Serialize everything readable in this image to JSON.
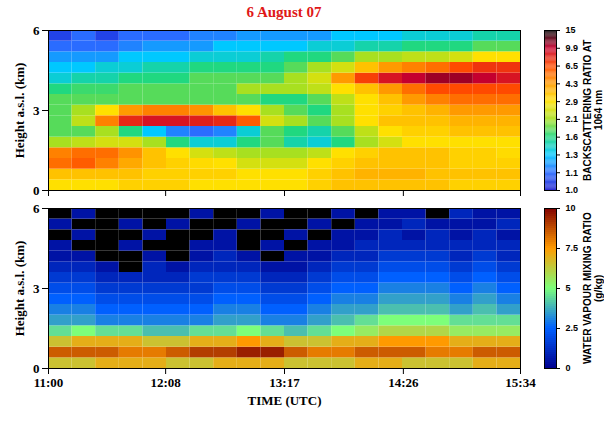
{
  "chart_data": [
    {
      "type": "heatmap",
      "title": "6 August 07",
      "ylabel": "Height a.s.l. (km)",
      "xlim": [
        660,
        934
      ],
      "xticks": [
        {
          "value": 660,
          "label": "11:00"
        },
        {
          "value": 728,
          "label": "12:08"
        },
        {
          "value": 797,
          "label": "13:17"
        },
        {
          "value": 866,
          "label": "14:26"
        },
        {
          "value": 934,
          "label": "15:34"
        }
      ],
      "ylim": [
        0,
        6
      ],
      "yticks": [
        0,
        3,
        6
      ],
      "tick_labels": "y",
      "x_bins": [
        660,
        673.7,
        687.4,
        701.1,
        714.8,
        728.5,
        742.2,
        755.9,
        769.6,
        783.3,
        797,
        810.7,
        824.4,
        838.1,
        851.8,
        865.5,
        879.2,
        892.9,
        906.6,
        920.3,
        934
      ],
      "y_bins": [
        0,
        0.4,
        0.8,
        1.2,
        1.6,
        2.0,
        2.4,
        2.8,
        3.2,
        3.6,
        4.0,
        4.4,
        4.8,
        5.2,
        5.6,
        6.0
      ],
      "cells": [
        [
          2.9,
          2.9,
          2.9,
          3.2,
          3.2,
          3.2,
          2.9,
          2.9,
          2.9,
          2.9,
          2.9,
          3.2,
          3.5,
          3.5,
          3.5,
          3.5,
          3.5,
          3.2,
          3.2,
          3.2
        ],
        [
          3.5,
          3.5,
          3.5,
          3.5,
          3.2,
          3.2,
          3.2,
          3.2,
          2.9,
          2.9,
          2.9,
          3.2,
          3.5,
          3.8,
          3.8,
          3.8,
          3.5,
          3.5,
          3.5,
          3.5
        ],
        [
          5.5,
          6.0,
          5.0,
          4.0,
          3.5,
          3.2,
          3.0,
          2.9,
          2.5,
          2.5,
          2.5,
          2.9,
          3.2,
          3.5,
          3.5,
          3.5,
          3.5,
          3.2,
          3.2,
          3.2
        ],
        [
          5.0,
          5.5,
          5.5,
          4.5,
          3.5,
          2.9,
          2.5,
          2.3,
          2.1,
          2.1,
          2.1,
          2.3,
          2.9,
          3.2,
          3.5,
          3.5,
          3.5,
          3.2,
          3.2,
          3.0
        ],
        [
          2.1,
          2.3,
          2.5,
          2.5,
          2.1,
          1.6,
          1.4,
          1.4,
          1.6,
          1.8,
          1.5,
          1.4,
          1.6,
          2.1,
          2.5,
          2.9,
          2.9,
          2.9,
          2.9,
          2.9
        ],
        [
          1.8,
          1.8,
          2.1,
          1.6,
          1.3,
          1.15,
          1.1,
          1.15,
          1.4,
          1.8,
          1.6,
          1.5,
          1.8,
          2.3,
          2.9,
          3.2,
          3.2,
          3.5,
          3.5,
          3.5
        ],
        [
          1.8,
          2.3,
          5.0,
          8.0,
          9.0,
          9.0,
          8.5,
          8.0,
          6.0,
          2.5,
          2.1,
          1.8,
          2.1,
          2.9,
          3.5,
          3.5,
          3.5,
          3.8,
          3.8,
          3.8
        ],
        [
          1.8,
          2.1,
          2.9,
          4.3,
          5.0,
          5.0,
          4.5,
          3.5,
          2.9,
          2.1,
          1.8,
          1.6,
          2.1,
          2.9,
          3.2,
          3.5,
          3.8,
          4.3,
          4.3,
          4.3
        ],
        [
          1.8,
          1.8,
          1.8,
          1.8,
          1.8,
          1.8,
          1.8,
          1.8,
          1.8,
          1.6,
          1.6,
          1.8,
          2.3,
          2.9,
          3.5,
          4.3,
          5.0,
          5.5,
          5.5,
          5.5
        ],
        [
          1.6,
          1.7,
          1.7,
          1.8,
          1.8,
          1.8,
          1.8,
          1.8,
          2.1,
          2.1,
          2.1,
          2.3,
          2.9,
          3.5,
          4.3,
          5.5,
          6.5,
          6.5,
          6.5,
          6.5
        ],
        [
          1.4,
          1.5,
          1.5,
          1.6,
          1.6,
          1.6,
          1.8,
          1.8,
          1.8,
          1.8,
          2.1,
          2.5,
          4.3,
          7.0,
          9.0,
          10,
          11,
          11,
          10,
          9.0
        ],
        [
          1.3,
          1.3,
          1.4,
          1.4,
          1.5,
          1.5,
          1.6,
          1.6,
          1.6,
          1.6,
          1.8,
          2.1,
          2.5,
          3.5,
          4.3,
          5.0,
          5.5,
          6.5,
          7.5,
          7.5
        ],
        [
          1.2,
          1.2,
          1.2,
          1.3,
          1.3,
          1.3,
          1.4,
          1.4,
          1.4,
          1.5,
          1.6,
          1.6,
          1.8,
          2.1,
          2.1,
          2.3,
          2.3,
          2.5,
          2.9,
          2.9
        ],
        [
          1.1,
          1.1,
          1.1,
          1.15,
          1.2,
          1.2,
          1.2,
          1.3,
          1.3,
          1.3,
          1.3,
          1.4,
          1.4,
          1.5,
          1.5,
          1.6,
          1.6,
          1.6,
          1.8,
          1.8
        ],
        [
          1.05,
          1.1,
          1.05,
          1.1,
          1.1,
          1.1,
          1.15,
          1.15,
          1.2,
          1.2,
          1.2,
          1.2,
          1.3,
          1.3,
          1.3,
          1.4,
          1.4,
          1.4,
          1.5,
          1.5
        ]
      ],
      "colorbar": {
        "label": "BACKSCATTERING RATIO AT 1064 nm",
        "range": [
          1,
          15
        ],
        "ticks": [
          {
            "value": 1,
            "label": "1.0"
          },
          1.1,
          1.3,
          1.6,
          2.1,
          2.9,
          4.3,
          6.5,
          9.9,
          15
        ],
        "colors": [
          "#1a1ad0",
          "#2a6cff",
          "#00c8ff",
          "#20d880",
          "#a8e020",
          "#ffe000",
          "#ff9a00",
          "#ff4a00",
          "#c80030",
          "#000000"
        ]
      }
    },
    {
      "type": "heatmap",
      "xlabel": "TIME (UTC)",
      "ylabel": "Height a.s.l. (km)",
      "xlim": [
        660,
        934
      ],
      "xticks": [
        {
          "value": 660,
          "label": "11:00"
        },
        {
          "value": 728,
          "label": "12:08"
        },
        {
          "value": 797,
          "label": "13:17"
        },
        {
          "value": 866,
          "label": "14:26"
        },
        {
          "value": 934,
          "label": "15:34"
        }
      ],
      "ylim": [
        0,
        6
      ],
      "yticks": [
        0,
        3,
        6
      ],
      "x_bins": [
        660,
        673.7,
        687.4,
        701.1,
        714.8,
        728.5,
        742.2,
        755.9,
        769.6,
        783.3,
        797,
        810.7,
        824.4,
        838.1,
        851.8,
        865.5,
        879.2,
        892.9,
        906.6,
        920.3,
        934
      ],
      "y_bins": [
        0,
        0.4,
        0.8,
        1.2,
        1.6,
        2.0,
        2.4,
        2.8,
        3.2,
        3.6,
        4.0,
        4.4,
        4.8,
        5.2,
        5.6,
        6.0
      ],
      "cells": [
        [
          6.5,
          6.5,
          7,
          7,
          7,
          6.5,
          6.5,
          7,
          7,
          7,
          6.5,
          6.5,
          6.5,
          7,
          7,
          6.5,
          6.5,
          6.5,
          7,
          7
        ],
        [
          8.5,
          8.5,
          8.5,
          8,
          8,
          8.5,
          9,
          9,
          9.5,
          9.5,
          8.5,
          8,
          8,
          8.5,
          8.5,
          8.5,
          8,
          8,
          8.5,
          8.5
        ],
        [
          6.5,
          7,
          7,
          7,
          6.5,
          6.5,
          7,
          7,
          7.5,
          7,
          6.5,
          6.5,
          7,
          7,
          7.5,
          7.5,
          7.5,
          7,
          7,
          7
        ],
        [
          4.5,
          5,
          4.5,
          4.5,
          4,
          4,
          4.5,
          4.5,
          5,
          4.5,
          4,
          4.5,
          5,
          5.5,
          6,
          6,
          6,
          5.5,
          5.5,
          5.5
        ],
        [
          3.5,
          3.5,
          3,
          3,
          3,
          3,
          3,
          3.5,
          3.5,
          3,
          3,
          3.5,
          4,
          4.5,
          5,
          5,
          5,
          4.5,
          4.5,
          4.5
        ],
        [
          3,
          3,
          2.5,
          2.5,
          2.5,
          2.5,
          2.5,
          3,
          3,
          2.5,
          2.5,
          3,
          3.5,
          3.5,
          4,
          4,
          4,
          3.5,
          4,
          3.5
        ],
        [
          2.5,
          2.5,
          2,
          2,
          2,
          2,
          2,
          2.5,
          2.5,
          2,
          2,
          2.5,
          3,
          3,
          3.5,
          3.5,
          3.5,
          3,
          3.5,
          3
        ],
        [
          2,
          2,
          1.5,
          1.5,
          1.5,
          1.5,
          1.5,
          2,
          2,
          1.5,
          1.5,
          2,
          2.5,
          2.5,
          3,
          3,
          3,
          2.5,
          3,
          2.5
        ],
        [
          1.5,
          1.5,
          1,
          1,
          1,
          1,
          1.5,
          1.5,
          1.5,
          1,
          1,
          1.5,
          2,
          2,
          2.5,
          2.5,
          2.5,
          2,
          2.5,
          2
        ],
        [
          1,
          1,
          0.5,
          null,
          1,
          0.5,
          1,
          1,
          1,
          0.5,
          0.5,
          1,
          1.5,
          1.5,
          2,
          2,
          2,
          1.5,
          2,
          1.5
        ],
        [
          0.5,
          0.5,
          null,
          null,
          0.5,
          null,
          0.5,
          1,
          0.5,
          null,
          0.5,
          0.5,
          1,
          1,
          1.5,
          1.5,
          1.5,
          1,
          1.5,
          1
        ],
        [
          0.5,
          null,
          null,
          0.5,
          null,
          null,
          0.5,
          0.5,
          null,
          0.5,
          null,
          0.5,
          0.5,
          1,
          1,
          1,
          1,
          1,
          1,
          1
        ],
        [
          null,
          0.5,
          null,
          null,
          0.5,
          null,
          null,
          0.5,
          null,
          null,
          0.5,
          null,
          0.5,
          0.5,
          1,
          0.5,
          1,
          0.5,
          1,
          0.5
        ],
        [
          0.5,
          null,
          null,
          0.5,
          null,
          0.5,
          null,
          null,
          0.5,
          null,
          null,
          0.5,
          null,
          0.5,
          0.5,
          1,
          0.5,
          0.5,
          0.5,
          1
        ],
        [
          null,
          0.5,
          null,
          null,
          null,
          null,
          0.5,
          null,
          null,
          0.5,
          null,
          null,
          0.5,
          null,
          0.5,
          0.5,
          null,
          1,
          0.5,
          0.5
        ]
      ],
      "colorbar": {
        "label": "WATER VAPOUR MIXING RATIO (g/kg)",
        "range": [
          0,
          10
        ],
        "ticks": [
          0,
          2.5,
          5,
          7.5,
          10
        ],
        "colors": [
          "#00008f",
          "#0060ff",
          "#7dff7a",
          "#ff9a00",
          "#800000"
        ]
      }
    }
  ]
}
